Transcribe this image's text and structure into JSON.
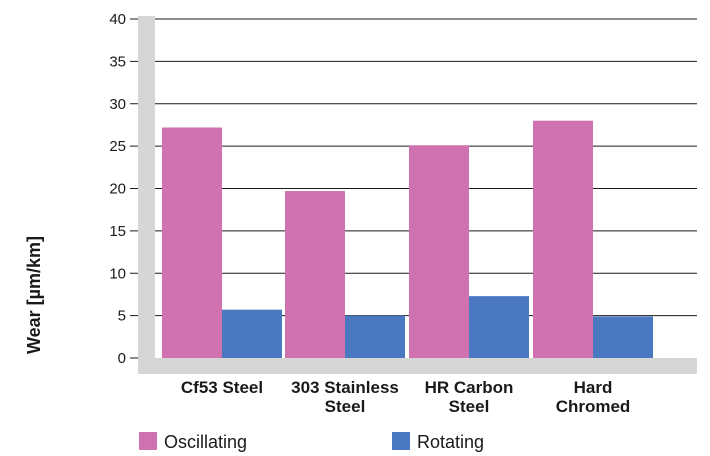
{
  "chart_data": {
    "type": "bar",
    "title": "",
    "xlabel": "",
    "ylabel": "Wear [µm/km]",
    "ylim": [
      0,
      40
    ],
    "yticks": [
      0,
      5,
      10,
      15,
      20,
      25,
      30,
      35,
      40
    ],
    "grid": true,
    "legend_position": "bottom",
    "categories": [
      [
        "Cf53 Steel"
      ],
      [
        "303 Stainless",
        "Steel"
      ],
      [
        "HR Carbon",
        "Steel"
      ],
      [
        "Hard",
        "Chromed"
      ]
    ],
    "series": [
      {
        "name": "Oscillating",
        "color": "#d071b0",
        "values": [
          27.2,
          19.7,
          25.1,
          28.0
        ]
      },
      {
        "name": "Rotating",
        "color": "#4a79c1",
        "values": [
          5.7,
          5.0,
          7.3,
          4.9
        ]
      }
    ],
    "colors": {
      "background_wall": "#d6d6d6",
      "gridline": "#1a1a1a"
    }
  }
}
